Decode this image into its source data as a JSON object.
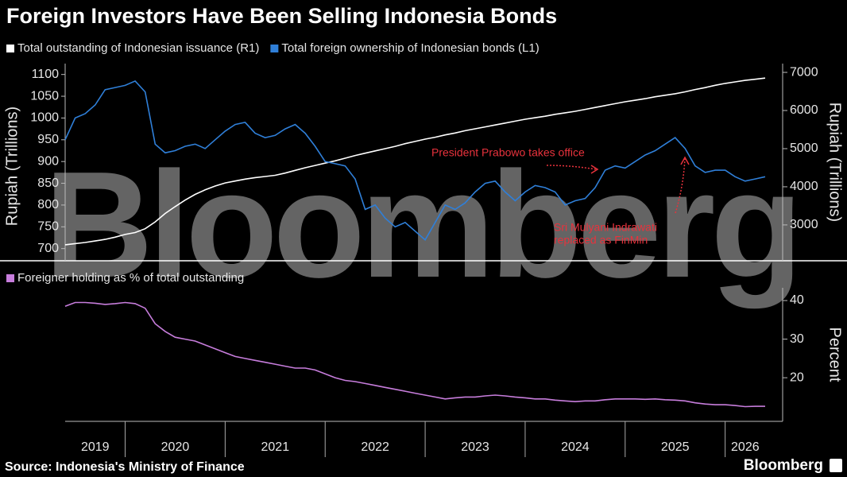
{
  "title": "Foreign Investors Have Been Selling Indonesia Bonds",
  "source": "Source: Indonesia's Ministry of Finance",
  "logo": "Bloomberg",
  "watermark": "Bloomberg",
  "chart_data": [
    {
      "type": "line",
      "ylabel": "Rupiah (Trillions)",
      "y2label": "Rupiah (Trillions)",
      "x": [
        2019.4,
        2019.5,
        2019.6,
        2019.7,
        2019.8,
        2019.9,
        2020,
        2020.1,
        2020.2,
        2020.3,
        2020.4,
        2020.5,
        2020.6,
        2020.7,
        2020.8,
        2020.9,
        2021,
        2021.1,
        2021.2,
        2021.3,
        2021.4,
        2021.5,
        2021.6,
        2021.7,
        2021.8,
        2021.9,
        2022,
        2022.1,
        2022.2,
        2022.3,
        2022.4,
        2022.5,
        2022.6,
        2022.7,
        2022.8,
        2022.9,
        2023,
        2023.1,
        2023.2,
        2023.3,
        2023.4,
        2023.5,
        2023.6,
        2023.7,
        2023.8,
        2023.9,
        2024,
        2024.1,
        2024.2,
        2024.3,
        2024.4,
        2024.5,
        2024.6,
        2024.7,
        2024.8,
        2024.9,
        2025,
        2025.1,
        2025.2,
        2025.3,
        2025.4,
        2025.5,
        2025.6,
        2025.7,
        2025.8,
        2025.9,
        2026,
        2026.1,
        2026.2,
        2026.3,
        2026.4
      ],
      "xlim": [
        2019.4,
        2026.4
      ],
      "ylim": [
        672,
        1125
      ],
      "yticks": [
        700,
        750,
        800,
        850,
        900,
        950,
        1000,
        1050,
        1100
      ],
      "y2lim": [
        2060,
        7230
      ],
      "y2ticks": [
        3000,
        4000,
        5000,
        6000,
        7000
      ],
      "series": [
        {
          "name": "Total outstanding of Indonesian issuance (R1)",
          "color": "#ffffff",
          "axis": "y2",
          "values": [
            2480,
            2510,
            2540,
            2580,
            2620,
            2680,
            2750,
            2800,
            2900,
            3080,
            3300,
            3480,
            3650,
            3800,
            3920,
            4020,
            4100,
            4150,
            4200,
            4240,
            4270,
            4300,
            4360,
            4430,
            4500,
            4560,
            4620,
            4680,
            4750,
            4820,
            4880,
            4940,
            5000,
            5060,
            5130,
            5190,
            5250,
            5300,
            5360,
            5410,
            5470,
            5520,
            5570,
            5620,
            5670,
            5720,
            5770,
            5810,
            5850,
            5900,
            5940,
            5980,
            6030,
            6080,
            6130,
            6180,
            6230,
            6270,
            6310,
            6360,
            6400,
            6440,
            6490,
            6550,
            6600,
            6660,
            6710,
            6750,
            6790,
            6820,
            6850
          ]
        },
        {
          "name": "Total foreign ownership of Indonesian bonds (L1)",
          "color": "#2f7fd8",
          "values": [
            950,
            1000,
            1010,
            1030,
            1065,
            1070,
            1075,
            1085,
            1060,
            940,
            920,
            925,
            935,
            940,
            930,
            950,
            970,
            985,
            990,
            965,
            955,
            960,
            975,
            985,
            965,
            935,
            900,
            895,
            890,
            860,
            790,
            800,
            770,
            750,
            760,
            740,
            720,
            760,
            800,
            790,
            805,
            830,
            850,
            855,
            830,
            810,
            830,
            845,
            840,
            830,
            800,
            810,
            815,
            840,
            880,
            890,
            885,
            900,
            915,
            925,
            940,
            955,
            930,
            890,
            875,
            880,
            880,
            865,
            855,
            860,
            865
          ]
        }
      ],
      "annotations": [
        {
          "text": [
            "President Prabowo takes office"
          ]
        },
        {
          "text": [
            "Sri Mulyani Indrawati",
            "replaced as FinMin"
          ]
        }
      ]
    },
    {
      "type": "line",
      "y2label": "Percent",
      "x": [
        2019.4,
        2019.5,
        2019.6,
        2019.7,
        2019.8,
        2019.9,
        2020,
        2020.1,
        2020.2,
        2020.3,
        2020.4,
        2020.5,
        2020.6,
        2020.7,
        2020.8,
        2020.9,
        2021,
        2021.1,
        2021.2,
        2021.3,
        2021.4,
        2021.5,
        2021.6,
        2021.7,
        2021.8,
        2021.9,
        2022,
        2022.1,
        2022.2,
        2022.3,
        2022.4,
        2022.5,
        2022.6,
        2022.7,
        2022.8,
        2022.9,
        2023,
        2023.1,
        2023.2,
        2023.3,
        2023.4,
        2023.5,
        2023.6,
        2023.7,
        2023.8,
        2023.9,
        2024,
        2024.1,
        2024.2,
        2024.3,
        2024.4,
        2024.5,
        2024.6,
        2024.7,
        2024.8,
        2024.9,
        2025,
        2025.1,
        2025.2,
        2025.3,
        2025.4,
        2025.5,
        2025.6,
        2025.7,
        2025.8,
        2025.9,
        2026,
        2026.1,
        2026.2,
        2026.3,
        2026.4
      ],
      "xlim": [
        2019.4,
        2026.4
      ],
      "xticks": [
        {
          "value": 2019,
          "label": "2019"
        },
        {
          "value": 2020,
          "label": "2020"
        },
        {
          "value": 2021,
          "label": "2021"
        },
        {
          "value": 2022,
          "label": "2022"
        },
        {
          "value": 2023,
          "label": "2023"
        },
        {
          "value": 2024,
          "label": "2024"
        },
        {
          "value": 2025,
          "label": "2025"
        },
        {
          "value": 2026,
          "label": "2026"
        }
      ],
      "y2lim": [
        8.7,
        43.3
      ],
      "y2ticks": [
        20,
        30,
        40
      ],
      "series": [
        {
          "name": "Foreigner holding as % of total outstanding",
          "color": "#c77ddc",
          "axis": "y2",
          "values": [
            38.5,
            39.5,
            39.5,
            39.3,
            39,
            39.2,
            39.5,
            39.2,
            38,
            34,
            32,
            30.5,
            30,
            29.5,
            28.5,
            27.5,
            26.5,
            25.5,
            25,
            24.5,
            24,
            23.5,
            23,
            22.5,
            22.5,
            22,
            21,
            20,
            19.3,
            19,
            18.5,
            18,
            17.5,
            17,
            16.5,
            16,
            15.5,
            15,
            14.5,
            14.8,
            15,
            15,
            15.3,
            15.5,
            15.3,
            15,
            14.8,
            14.5,
            14.5,
            14.2,
            14,
            13.8,
            14,
            14,
            14.3,
            14.5,
            14.5,
            14.5,
            14.4,
            14.5,
            14.3,
            14.2,
            14,
            13.5,
            13.2,
            13,
            13,
            12.8,
            12.5,
            12.6,
            12.6
          ]
        }
      ]
    }
  ]
}
